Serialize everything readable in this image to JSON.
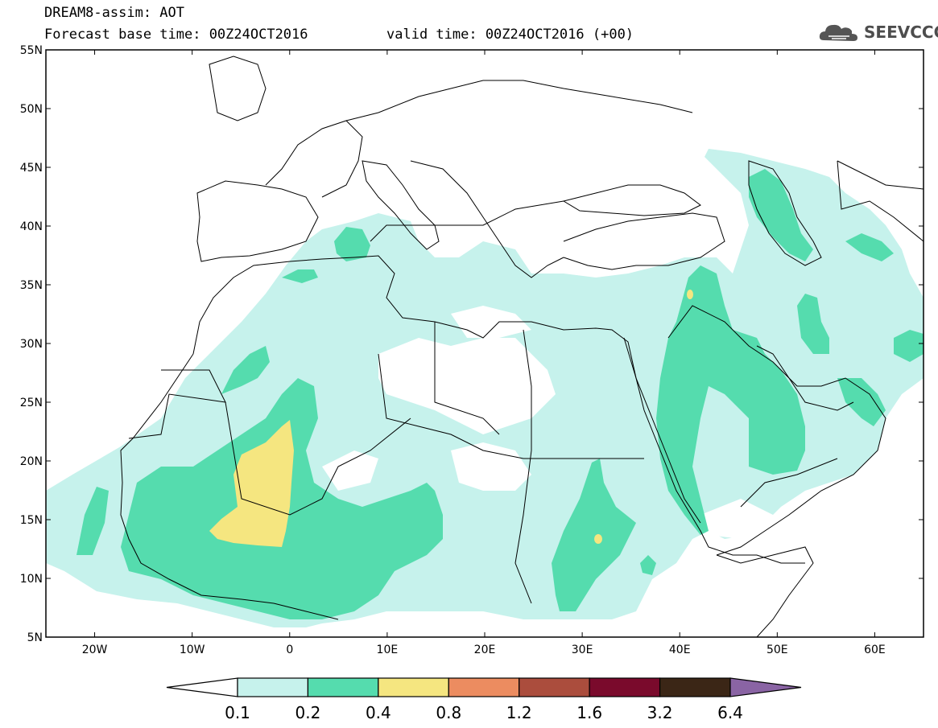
{
  "header": {
    "line1": "DREAM8-assim: AOT",
    "line2": "Forecast base time: 00Z24OCT2016",
    "valid": "valid time: 00Z24OCT2016 (+00)"
  },
  "logo": {
    "text": "SEEVCCC",
    "icon": "cloud-icon"
  },
  "map": {
    "lon_range": [
      -25,
      65
    ],
    "lat_range": [
      5,
      55
    ],
    "lat_ticks": [
      "55N",
      "50N",
      "45N",
      "40N",
      "35N",
      "30N",
      "25N",
      "20N",
      "15N",
      "10N",
      "5N"
    ],
    "lon_ticks": [
      "20W",
      "10W",
      "0",
      "10E",
      "20E",
      "30E",
      "40E",
      "50E",
      "60E"
    ],
    "field": "AOT"
  },
  "colorbar": {
    "labels": [
      "0.1",
      "0.2",
      "0.4",
      "0.8",
      "1.2",
      "1.6",
      "3.2",
      "6.4"
    ],
    "colors": [
      "#ffffff",
      "#c6f2ec",
      "#55dcae",
      "#f5e680",
      "#ec8c60",
      "#ab4d3d",
      "#7a0a2c",
      "#3b2616",
      "#8a64a4"
    ]
  }
}
